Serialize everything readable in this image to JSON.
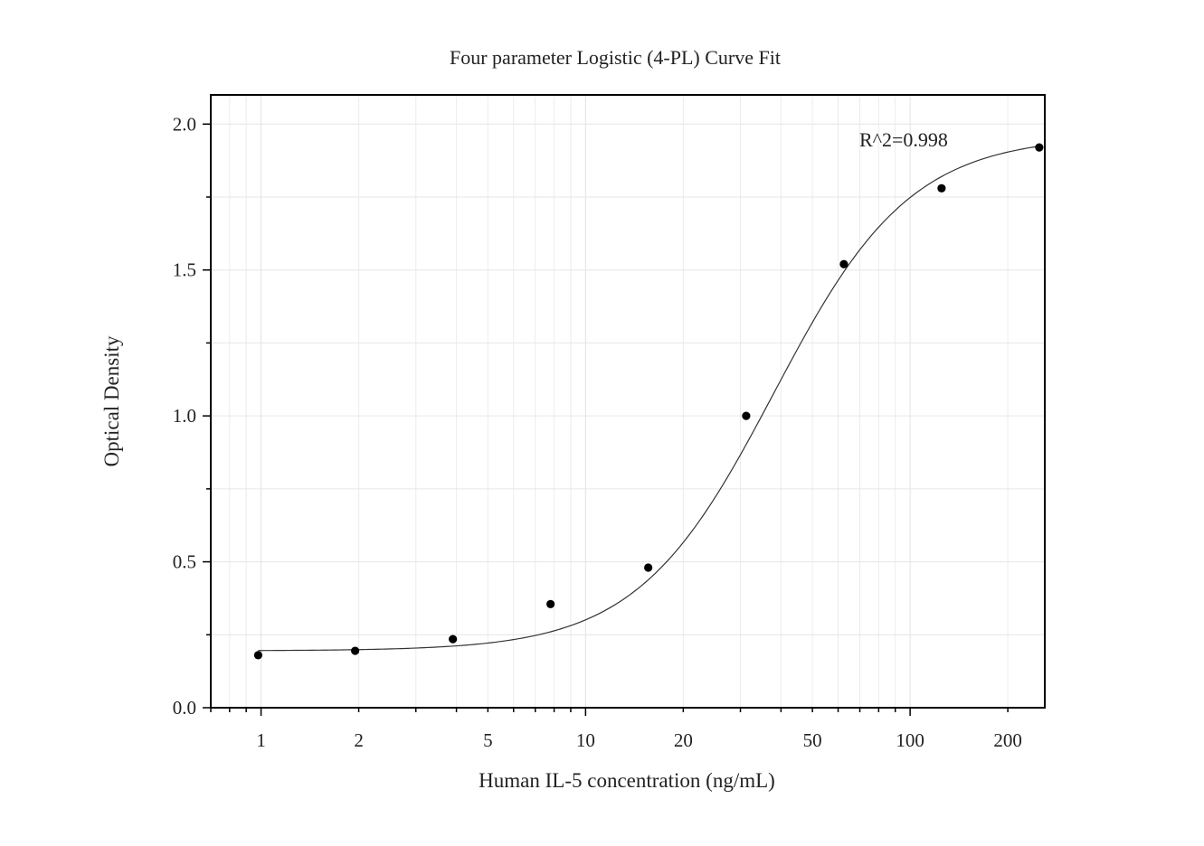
{
  "chart_data": {
    "type": "scatter",
    "title": "Four parameter Logistic (4-PL) Curve Fit",
    "xlabel": "Human IL-5 concentration (ng/mL)",
    "ylabel": "Optical Density",
    "x_scale": "log",
    "xlim": [
      0.7,
      260
    ],
    "ylim": [
      0,
      2.1
    ],
    "x_ticks": [
      1,
      2,
      5,
      10,
      20,
      50,
      100,
      200
    ],
    "x_tick_labels": [
      "1",
      "2",
      "5",
      "10",
      "20",
      "50",
      "100",
      "200"
    ],
    "y_ticks": [
      0.0,
      0.5,
      1.0,
      1.5,
      2.0
    ],
    "y_tick_labels": [
      "0.0",
      "0.5",
      "1.0",
      "1.5",
      "2.0"
    ],
    "grid": true,
    "annotation": "R^2=0.998",
    "series": [
      {
        "mode": "markers",
        "color": "#000000",
        "x": [
          0.98,
          1.95,
          3.9,
          7.8,
          15.6,
          31.25,
          62.5,
          125,
          250
        ],
        "y": [
          0.18,
          0.195,
          0.235,
          0.355,
          0.48,
          1.0,
          1.52,
          1.78,
          1.92
        ]
      },
      {
        "mode": "fitted-curve",
        "model": "4PL",
        "color": "#333333",
        "params": {
          "A": 0.195,
          "B": 2.06,
          "C": 38.0,
          "D": 1.96
        }
      }
    ]
  }
}
